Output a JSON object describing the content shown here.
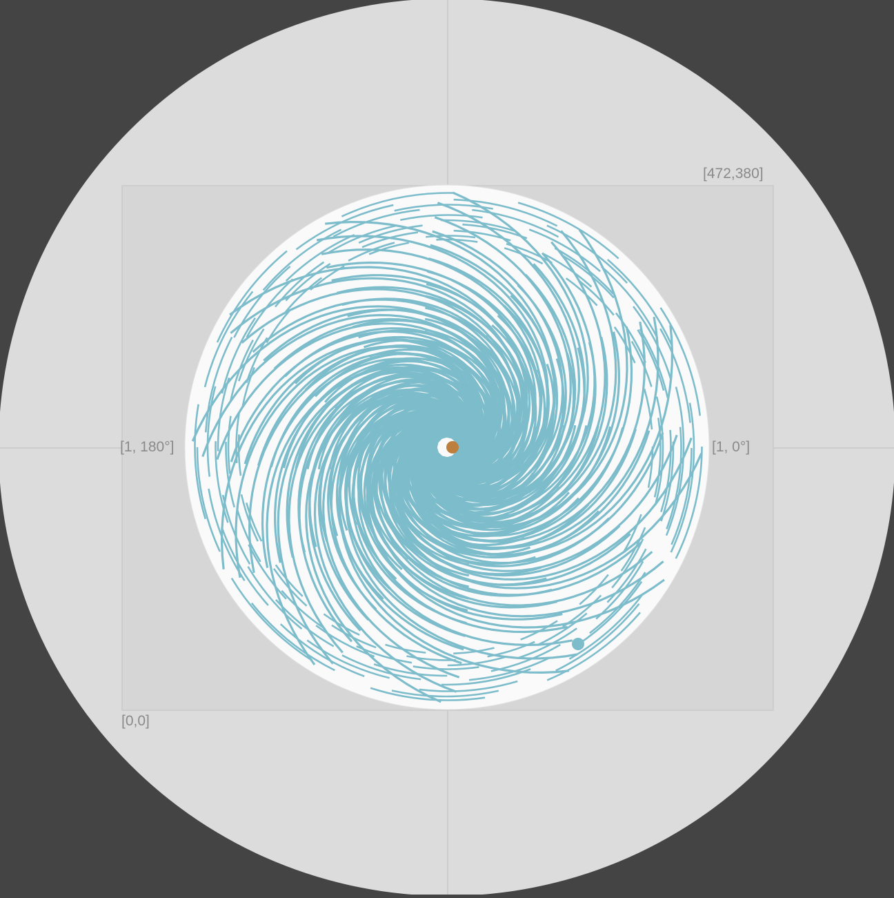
{
  "colors": {
    "background": "#444444",
    "outer_disc": "#dcdcdc",
    "axis_lines": "#c8c8c8",
    "bounds_rect_fill": "#d6d6d6",
    "bounds_rect_stroke": "#c9c9c9",
    "table_disc": "#fafafa",
    "table_disc_stroke": "#e2e2e2",
    "pattern_stroke": "#7cbccb",
    "start_marker": "#bc7f3d",
    "end_marker": "#7cbccb",
    "label_text": "#8a8a8a"
  },
  "labels": {
    "top_right_corner": "[472,380]",
    "bottom_left_corner": "[0,0]",
    "left_axis": "[1, 180°]",
    "right_axis": "[1, 0°]"
  },
  "pattern": {
    "arm_count": 12,
    "path_rings": 24,
    "center_marker": "ball-start",
    "end_marker": "ball-end"
  }
}
